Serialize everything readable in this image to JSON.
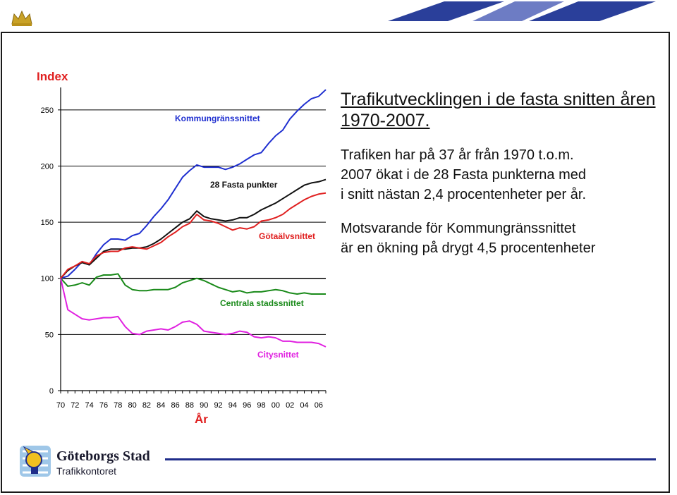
{
  "chart_data": {
    "type": "line",
    "ylabel": "Index",
    "xlabel": "År",
    "ylim": [
      0,
      270
    ],
    "yticks": [
      0,
      50,
      100,
      150,
      200,
      250
    ],
    "xticks": [
      "70",
      "72",
      "74",
      "76",
      "78",
      "80",
      "82",
      "84",
      "86",
      "88",
      "90",
      "92",
      "94",
      "96",
      "98",
      "00",
      "02",
      "04",
      "06"
    ],
    "x": [
      1970,
      1971,
      1972,
      1973,
      1974,
      1975,
      1976,
      1977,
      1978,
      1979,
      1980,
      1981,
      1982,
      1983,
      1984,
      1985,
      1986,
      1987,
      1988,
      1989,
      1990,
      1991,
      1992,
      1993,
      1994,
      1995,
      1996,
      1997,
      1998,
      1999,
      2000,
      2001,
      2002,
      2003,
      2004,
      2005,
      2006,
      2007
    ],
    "grid": "horizontal",
    "series": [
      {
        "name": "Kommungränssnittet",
        "color": "#1f2fd0",
        "values": [
          100,
          102,
          108,
          115,
          112,
          122,
          130,
          135,
          135,
          134,
          138,
          140,
          147,
          155,
          162,
          170,
          180,
          190,
          196,
          201,
          199,
          199,
          199,
          197,
          199,
          202,
          206,
          210,
          212,
          220,
          227,
          232,
          242,
          249,
          255,
          260,
          262,
          268
        ]
      },
      {
        "name": "28 Fasta punkter",
        "color": "#111111",
        "values": [
          100,
          107,
          111,
          114,
          112,
          118,
          124,
          126,
          126,
          126,
          127,
          127,
          128,
          131,
          135,
          140,
          145,
          150,
          153,
          160,
          155,
          153,
          152,
          151,
          152,
          154,
          154,
          157,
          161,
          164,
          167,
          171,
          175,
          179,
          183,
          185,
          186,
          188
        ]
      },
      {
        "name": "Götaälvsnittet",
        "color": "#e02020",
        "values": [
          100,
          108,
          111,
          115,
          113,
          120,
          123,
          124,
          124,
          127,
          128,
          127,
          126,
          129,
          132,
          137,
          141,
          146,
          149,
          157,
          152,
          151,
          149,
          146,
          143,
          145,
          144,
          146,
          151,
          152,
          154,
          157,
          162,
          166,
          170,
          173,
          175,
          176
        ]
      },
      {
        "name": "Centrala stadssnittet",
        "color": "#1a8a1a",
        "values": [
          100,
          93,
          94,
          96,
          94,
          101,
          103,
          103,
          104,
          94,
          90,
          89,
          89,
          90,
          90,
          90,
          92,
          96,
          98,
          100,
          98,
          95,
          92,
          90,
          88,
          89,
          87,
          88,
          88,
          89,
          90,
          89,
          87,
          86,
          87,
          86,
          86,
          86
        ]
      },
      {
        "name": "Citysnittet",
        "color": "#e020e0",
        "values": [
          100,
          72,
          68,
          64,
          63,
          64,
          65,
          65,
          66,
          57,
          51,
          50,
          53,
          54,
          55,
          54,
          57,
          61,
          62,
          59,
          53,
          52,
          51,
          50,
          51,
          53,
          52,
          48,
          47,
          48,
          47,
          44,
          44,
          43,
          43,
          43,
          42,
          39
        ]
      }
    ]
  },
  "slide": {
    "heading": "Trafikutvecklingen i de fasta snitten åren 1970-2007.",
    "paragraph1": "Trafiken har på 37 år från 1970 t.o.m.\n2007 ökat i de 28 Fasta punkterna med\ni snitt nästan 2,4 procentenheter per år.",
    "paragraph2": "Motsvarande för Kommungränssnittet\när en ökning på drygt 4,5 procentenheter"
  },
  "footer": {
    "org_name": "Göteborgs Stad",
    "org_sub": "Trafikkontoret",
    "rule_color": "#1f2d8a"
  }
}
